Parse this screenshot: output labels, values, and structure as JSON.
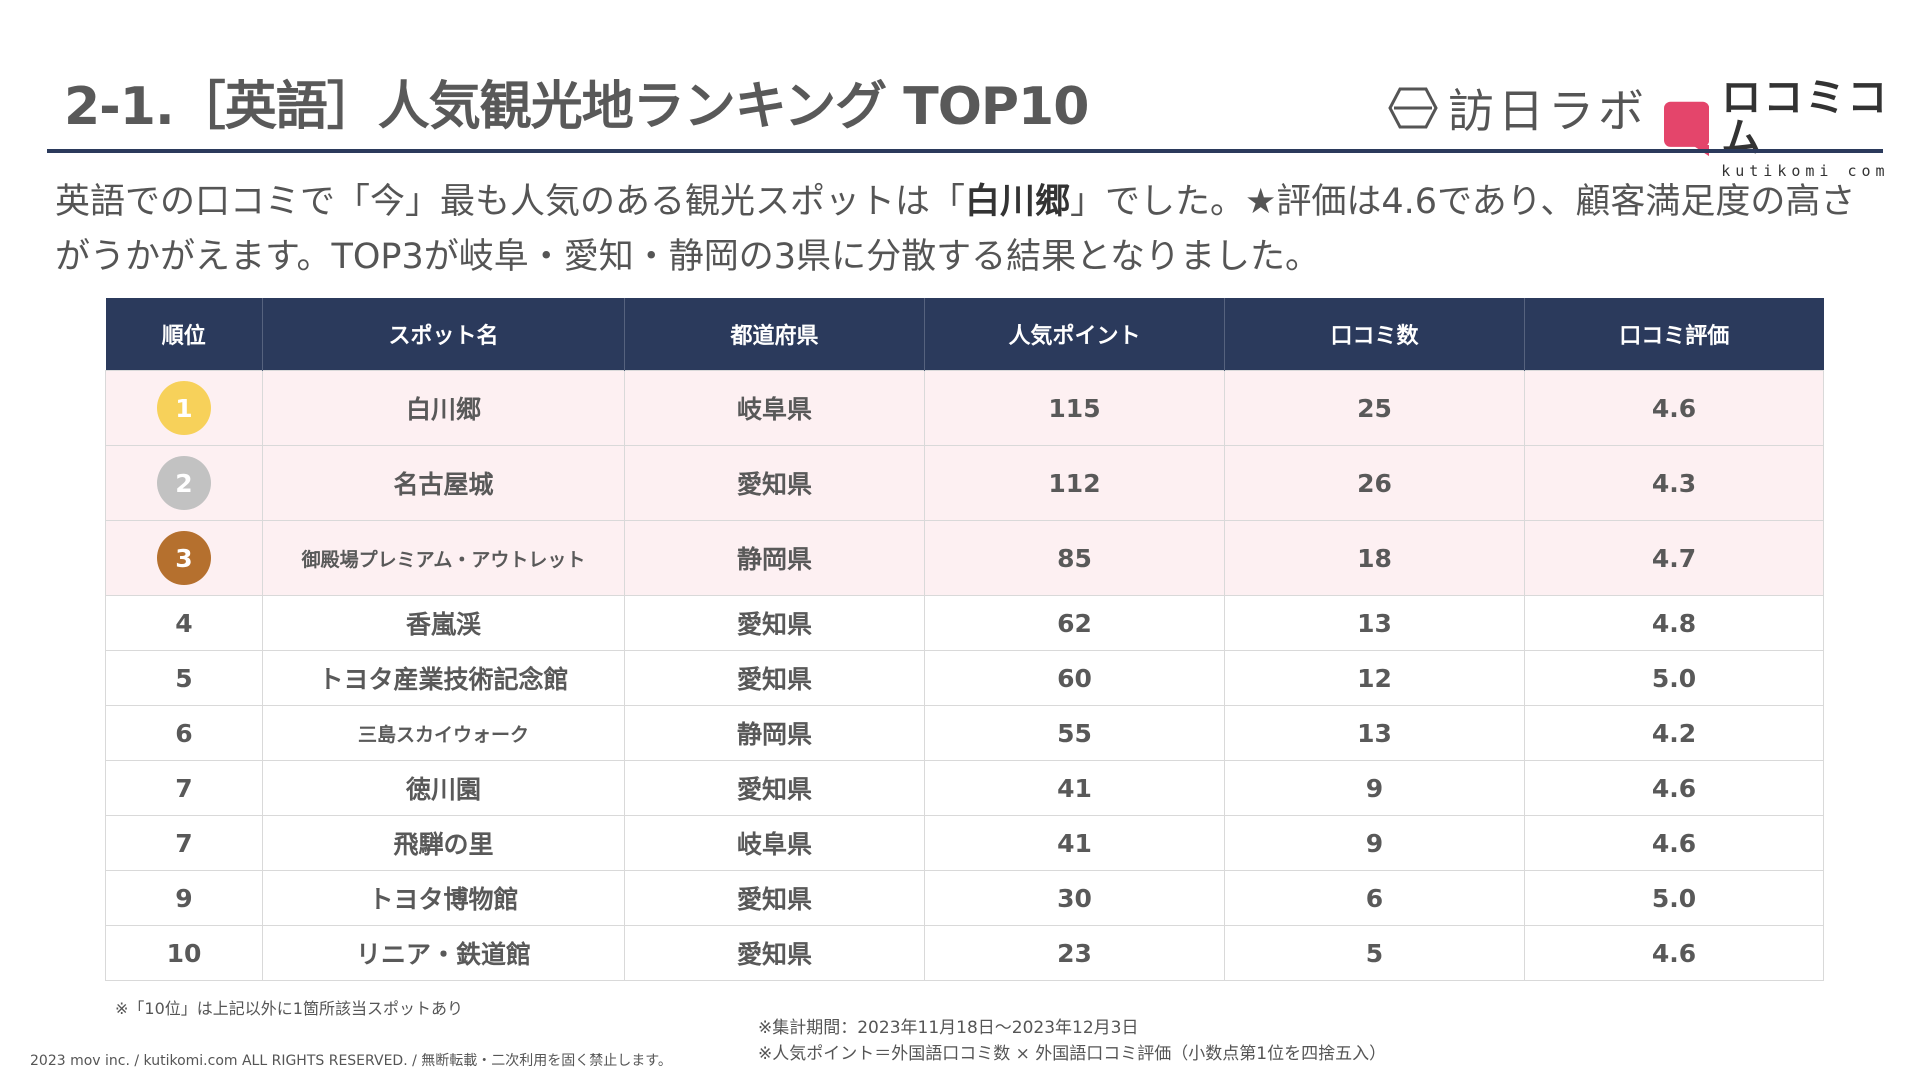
{
  "header": {
    "title": "2-1.［英語］人気観光地ランキング TOP10"
  },
  "logos": {
    "hojin": "訪日ラボ",
    "kuchi_jp": "ロコミコム",
    "kuchi_en": "kutikomi com"
  },
  "lead": {
    "part1": "英語での口コミで「今」最も人気のある観光スポットは「",
    "highlight": "白川郷",
    "part2": "」でした。★評価は4.6であり、顧客満足度の高さがうかがえます。TOP3が岐阜・愛知・静岡の3県に分散する結果となりました。"
  },
  "table": {
    "headers": [
      "順位",
      "スポット名",
      "都道府県",
      "人気ポイント",
      "口コミ数",
      "口コミ評価"
    ],
    "rows": [
      {
        "rank": "1",
        "spot": "白川郷",
        "pref": "岐阜県",
        "points": "115",
        "count": "25",
        "rating": "4.6"
      },
      {
        "rank": "2",
        "spot": "名古屋城",
        "pref": "愛知県",
        "points": "112",
        "count": "26",
        "rating": "4.3"
      },
      {
        "rank": "3",
        "spot": "御殿場プレミアム・アウトレット",
        "pref": "静岡県",
        "points": "85",
        "count": "18",
        "rating": "4.7"
      },
      {
        "rank": "4",
        "spot": "香嵐渓",
        "pref": "愛知県",
        "points": "62",
        "count": "13",
        "rating": "4.8"
      },
      {
        "rank": "5",
        "spot": "トヨタ産業技術記念館",
        "pref": "愛知県",
        "points": "60",
        "count": "12",
        "rating": "5.0"
      },
      {
        "rank": "6",
        "spot": "三島スカイウォーク",
        "pref": "静岡県",
        "points": "55",
        "count": "13",
        "rating": "4.2"
      },
      {
        "rank": "7",
        "spot": "徳川園",
        "pref": "愛知県",
        "points": "41",
        "count": "9",
        "rating": "4.6"
      },
      {
        "rank": "7",
        "spot": "飛騨の里",
        "pref": "岐阜県",
        "points": "41",
        "count": "9",
        "rating": "4.6"
      },
      {
        "rank": "9",
        "spot": "トヨタ博物館",
        "pref": "愛知県",
        "points": "30",
        "count": "6",
        "rating": "5.0"
      },
      {
        "rank": "10",
        "spot": "リニア・鉄道館",
        "pref": "愛知県",
        "points": "23",
        "count": "5",
        "rating": "4.6"
      }
    ],
    "medal_colors": [
      "#f7d15a",
      "#c2c2c2",
      "#b5702e"
    ]
  },
  "footer": {
    "note_rank10": "※「10位」は上記以外に1箇所該当スポットあり",
    "period": "※集計期間：2023年11月18日〜2023年12月3日",
    "formula": "※人気ポイント＝外国語口コミ数 × 外国語口コミ評価（小数点第1位を四捨五入）",
    "copyright": "2023 mov inc. / kutikomi.com ALL RIGHTS RESERVED. / 無断転載・二次利用を固く禁止します。"
  }
}
